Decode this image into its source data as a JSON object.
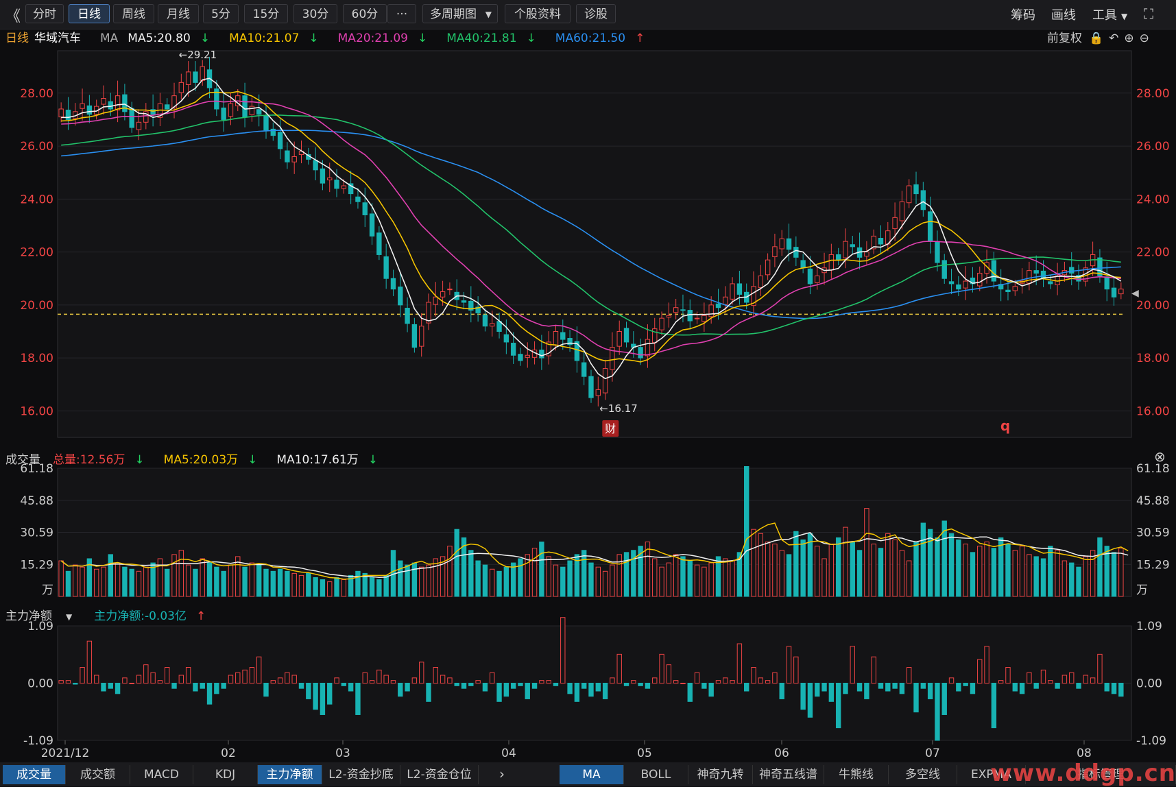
{
  "toolbar": {
    "back_icon": "double-chevron-left-icon",
    "periods": [
      "分时",
      "日线",
      "周线",
      "月线",
      "5分",
      "15分",
      "30分",
      "60分"
    ],
    "active": "日线",
    "more": "···",
    "multi_period": "多周期图",
    "profile": "个股资料",
    "diagnose": "诊股",
    "right": [
      "筹码",
      "画线",
      "工具"
    ],
    "fullscreen_icon": "fullscreen-icon"
  },
  "main_legend": {
    "period": "日线",
    "name": "华域汽车",
    "ind": "MA",
    "ma5": "MA5:20.80",
    "ma10": "MA10:21.07",
    "ma20": "MA20:21.09",
    "ma40": "MA40:21.81",
    "ma60": "MA60:21.50",
    "adjust": "前复权"
  },
  "vol_legend": {
    "title": "成交量",
    "total": "总量:12.56万",
    "ma5": "MA5:20.03万",
    "ma10": "MA10:17.61万"
  },
  "flow_legend": {
    "title": "主力净额",
    "value": "主力净额:-0.03亿"
  },
  "colors": {
    "up": "#ef4444",
    "down": "#18b3b3",
    "ma5": "#f0f0f0",
    "ma10": "#f5c400",
    "ma20": "#e040b0",
    "ma40": "#22c26a",
    "ma60": "#2a8ff0"
  },
  "annotations": {
    "high": "29.21",
    "low": "16.17",
    "fin_badge": "财",
    "q_mark": "q"
  },
  "bottom_tabs_left": [
    "成交量",
    "成交额",
    "MACD",
    "KDJ",
    "主力净额",
    "L2-资金抄底",
    "L2-资金仓位"
  ],
  "bottom_tabs_right": [
    "MA",
    "BOLL",
    "神奇九转",
    "神奇五线谱",
    "牛熊线",
    "多空线",
    "EXPMA",
    "指标管理"
  ],
  "watermark": "www.ddgp.cn",
  "chart_data": [
    {
      "type": "candlestick",
      "title": "华域汽车 日线",
      "y_ticks": [
        "28.00",
        "26.00",
        "24.00",
        "22.00",
        "20.00",
        "18.00",
        "16.00"
      ],
      "ylim": [
        15.0,
        29.6
      ],
      "x_ticks": [
        "2021/12",
        "02",
        "03",
        "04",
        "05",
        "06",
        "07",
        "08"
      ],
      "dashed_level": 19.65,
      "high_label": "29.21",
      "low_label": "16.17",
      "closes": [
        27.4,
        27.0,
        27.3,
        27.6,
        27.2,
        27.5,
        27.8,
        27.4,
        27.9,
        27.3,
        26.7,
        26.9,
        27.3,
        27.2,
        27.6,
        27.4,
        27.9,
        28.4,
        28.8,
        28.4,
        29.0,
        28.2,
        27.4,
        27.0,
        27.6,
        27.9,
        27.1,
        27.5,
        27.2,
        26.6,
        26.4,
        25.9,
        25.4,
        25.6,
        25.8,
        25.5,
        25.1,
        24.6,
        24.8,
        24.4,
        24.5,
        24.2,
        23.9,
        23.4,
        22.6,
        21.9,
        21.0,
        20.6,
        20.0,
        19.3,
        18.4,
        19.2,
        20.1,
        20.3,
        20.5,
        20.6,
        20.2,
        20.1,
        19.8,
        19.7,
        19.2,
        19.3,
        19.0,
        18.6,
        18.1,
        17.9,
        18.1,
        18.3,
        18.0,
        18.6,
        19.0,
        18.7,
        18.5,
        17.9,
        17.3,
        16.5,
        16.8,
        17.6,
        18.4,
        19.0,
        18.6,
        18.4,
        18.0,
        18.7,
        19.1,
        19.5,
        19.6,
        19.9,
        19.8,
        19.4,
        19.5,
        19.6,
        20.0,
        19.9,
        20.3,
        20.8,
        20.4,
        20.1,
        20.7,
        21.1,
        21.7,
        22.2,
        22.5,
        22.1,
        21.8,
        21.4,
        20.8,
        21.1,
        21.4,
        21.9,
        21.7,
        22.4,
        22.2,
        21.8,
        22.0,
        22.6,
        22.3,
        22.8,
        23.3,
        23.9,
        24.5,
        24.2,
        23.6,
        22.4,
        21.6,
        21.0,
        20.8,
        20.6,
        20.9,
        20.8,
        21.2,
        21.6,
        20.9,
        20.6,
        20.5,
        20.7,
        20.9,
        21.3,
        21.2,
        21.0,
        20.8,
        21.1,
        21.3,
        21.2,
        20.9,
        21.4,
        21.9,
        21.1,
        20.6,
        20.3,
        20.6
      ]
    },
    {
      "type": "bar",
      "title": "成交量",
      "unit": "万",
      "y_ticks": [
        "61.18",
        "45.88",
        "30.59",
        "15.29"
      ],
      "ylim": [
        0,
        61.18
      ],
      "values": [
        17,
        12,
        15,
        14,
        18,
        13,
        14,
        20,
        16,
        14,
        13,
        12,
        14,
        16,
        18,
        13,
        20,
        22,
        15,
        13,
        18,
        16,
        14,
        12,
        15,
        19,
        14,
        16,
        15,
        13,
        12,
        13,
        12,
        11,
        10,
        11,
        9,
        8,
        7,
        9,
        8,
        10,
        12,
        11,
        9,
        8,
        10,
        22,
        17,
        15,
        16,
        14,
        15,
        18,
        19,
        24,
        32,
        28,
        22,
        17,
        15,
        13,
        12,
        14,
        16,
        18,
        20,
        23,
        26,
        19,
        15,
        14,
        17,
        20,
        22,
        16,
        14,
        12,
        15,
        20,
        21,
        22,
        24,
        26,
        18,
        14,
        16,
        20,
        19,
        17,
        15,
        14,
        16,
        19,
        18,
        17,
        21,
        62,
        32,
        30,
        26,
        25,
        22,
        20,
        31,
        27,
        30,
        24,
        18,
        25,
        28,
        33,
        26,
        22,
        42,
        25,
        23,
        30,
        27,
        22,
        17,
        26,
        35,
        32,
        28,
        36,
        30,
        27,
        25,
        21,
        24,
        26,
        23,
        28,
        25,
        22,
        24,
        20,
        19,
        18,
        24,
        22,
        17,
        16,
        14,
        19,
        22,
        28,
        24,
        21,
        23,
        13
      ]
    },
    {
      "type": "bar",
      "title": "主力净额",
      "unit": "亿",
      "y_ticks": [
        "1.09",
        "0.00",
        "-1.09"
      ],
      "ylim": [
        -1.09,
        1.09
      ],
      "values": [
        0.05,
        0.05,
        -0.02,
        0.3,
        0.8,
        0.15,
        -0.15,
        -0.1,
        -0.2,
        0.1,
        0.0,
        0.15,
        0.35,
        0.2,
        0.05,
        0.3,
        -0.1,
        0.15,
        0.3,
        -0.15,
        -0.1,
        -0.4,
        -0.2,
        -0.1,
        0.15,
        0.2,
        0.25,
        0.3,
        0.5,
        -0.25,
        0.05,
        0.1,
        0.2,
        0.15,
        -0.1,
        -0.3,
        -0.5,
        -0.6,
        -0.4,
        0.1,
        -0.05,
        -0.15,
        -0.6,
        0.2,
        0.05,
        0.25,
        0.15,
        0.05,
        -0.25,
        -0.15,
        0.1,
        0.4,
        -0.35,
        0.3,
        0.15,
        0.1,
        -0.05,
        -0.1,
        -0.05,
        0.05,
        -0.15,
        0.2,
        -0.35,
        -0.25,
        -0.1,
        -0.05,
        -0.3,
        -0.1,
        0.05,
        0.05,
        -0.05,
        1.25,
        -0.2,
        -0.35,
        -0.1,
        -0.25,
        -0.15,
        -0.3,
        0.1,
        0.55,
        -0.05,
        0.05,
        -0.05,
        -0.1,
        0.1,
        0.55,
        0.35,
        0.05,
        0.0,
        -0.35,
        0.2,
        -0.1,
        -0.25,
        0.05,
        0.1,
        0.05,
        0.75,
        -0.15,
        0.3,
        0.1,
        0.05,
        0.2,
        -0.3,
        0.7,
        0.5,
        -0.5,
        -0.65,
        -0.25,
        -0.15,
        -0.35,
        -0.85,
        -0.2,
        0.7,
        -0.15,
        -0.3,
        0.5,
        -0.1,
        -0.15,
        -0.1,
        -0.2,
        0.3,
        -0.55,
        -0.1,
        -0.3,
        -1.09,
        -0.6,
        0.1,
        -0.15,
        -0.05,
        -0.2,
        0.45,
        0.7,
        -0.85,
        0.05,
        0.3,
        -0.15,
        -0.2,
        0.2,
        -0.1,
        0.25,
        0.05,
        -0.1,
        0.15,
        0.2,
        -0.1,
        0.15,
        0.1,
        0.55,
        -0.15,
        -0.2,
        -0.25,
        -0.05
      ]
    }
  ]
}
